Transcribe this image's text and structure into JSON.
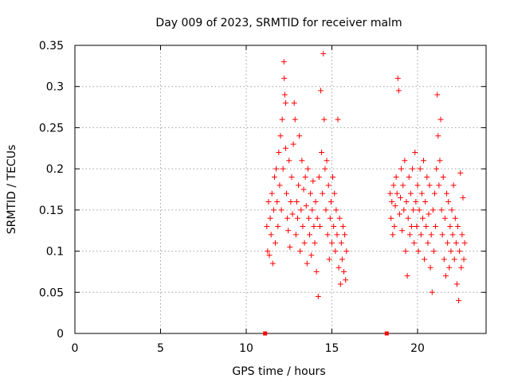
{
  "chart_data": {
    "type": "scatter",
    "title": "Day 009 of 2023, SRMTID for receiver malm",
    "xlabel": "GPS time / hours",
    "ylabel": "SRMTID / TECUs",
    "xlim": [
      0,
      24
    ],
    "ylim": [
      0,
      0.35
    ],
    "x_ticks": [
      0,
      5,
      10,
      15,
      20
    ],
    "x_tick_labels": [
      "0",
      "5",
      "10",
      "15",
      "20"
    ],
    "y_ticks": [
      0,
      0.05,
      0.1,
      0.15,
      0.2,
      0.25,
      0.3,
      0.35
    ],
    "y_tick_labels": [
      "0",
      "0.05",
      "0.1",
      "0.15",
      "0.2",
      "0.25",
      "0.3",
      "0.35"
    ],
    "grid": true,
    "marker": "plus",
    "color": "#ff0000",
    "gap_markers": [
      {
        "x": 11.1,
        "y": 0
      },
      {
        "x": 18.2,
        "y": 0
      }
    ],
    "series": [
      {
        "values": [
          [
            11.2,
            0.13
          ],
          [
            11.25,
            0.1
          ],
          [
            11.3,
            0.16
          ],
          [
            11.35,
            0.095
          ],
          [
            11.4,
            0.14
          ],
          [
            11.45,
            0.12
          ],
          [
            11.5,
            0.17
          ],
          [
            11.55,
            0.085
          ],
          [
            11.6,
            0.15
          ],
          [
            11.65,
            0.19
          ],
          [
            11.7,
            0.11
          ],
          [
            11.75,
            0.2
          ],
          [
            11.8,
            0.16
          ],
          [
            11.85,
            0.13
          ],
          [
            11.9,
            0.22
          ],
          [
            11.95,
            0.18
          ],
          [
            12.0,
            0.24
          ],
          [
            12.05,
            0.15
          ],
          [
            12.1,
            0.26
          ],
          [
            12.15,
            0.2
          ],
          [
            12.2,
            0.33
          ],
          [
            12.22,
            0.31
          ],
          [
            12.25,
            0.29
          ],
          [
            12.3,
            0.28
          ],
          [
            12.3,
            0.225
          ],
          [
            12.35,
            0.17
          ],
          [
            12.4,
            0.14
          ],
          [
            12.45,
            0.125
          ],
          [
            12.5,
            0.21
          ],
          [
            12.55,
            0.105
          ],
          [
            12.6,
            0.16
          ],
          [
            12.65,
            0.19
          ],
          [
            12.7,
            0.145
          ],
          [
            12.75,
            0.23
          ],
          [
            12.8,
            0.28
          ],
          [
            12.85,
            0.26
          ],
          [
            12.9,
            0.12
          ],
          [
            12.95,
            0.16
          ],
          [
            13.0,
            0.14
          ],
          [
            13.05,
            0.18
          ],
          [
            13.1,
            0.24
          ],
          [
            13.15,
            0.1
          ],
          [
            13.2,
            0.15
          ],
          [
            13.25,
            0.21
          ],
          [
            13.3,
            0.13
          ],
          [
            13.35,
            0.175
          ],
          [
            13.4,
            0.11
          ],
          [
            13.45,
            0.19
          ],
          [
            13.5,
            0.155
          ],
          [
            13.55,
            0.085
          ],
          [
            13.6,
            0.2
          ],
          [
            13.65,
            0.14
          ],
          [
            13.7,
            0.12
          ],
          [
            13.75,
            0.17
          ],
          [
            13.8,
            0.095
          ],
          [
            13.85,
            0.15
          ],
          [
            13.9,
            0.185
          ],
          [
            13.95,
            0.13
          ],
          [
            14.0,
            0.11
          ],
          [
            14.05,
            0.16
          ],
          [
            14.1,
            0.075
          ],
          [
            14.15,
            0.14
          ],
          [
            14.2,
            0.045
          ],
          [
            14.25,
            0.19
          ],
          [
            14.3,
            0.13
          ],
          [
            14.35,
            0.295
          ],
          [
            14.4,
            0.22
          ],
          [
            14.45,
            0.17
          ],
          [
            14.5,
            0.34
          ],
          [
            14.55,
            0.26
          ],
          [
            14.6,
            0.2
          ],
          [
            14.65,
            0.15
          ],
          [
            14.7,
            0.21
          ],
          [
            14.75,
            0.12
          ],
          [
            14.8,
            0.18
          ],
          [
            14.85,
            0.09
          ],
          [
            14.9,
            0.14
          ],
          [
            14.95,
            0.16
          ],
          [
            15.0,
            0.11
          ],
          [
            15.05,
            0.19
          ],
          [
            15.1,
            0.13
          ],
          [
            15.15,
            0.17
          ],
          [
            15.2,
            0.1
          ],
          [
            15.25,
            0.15
          ],
          [
            15.3,
            0.12
          ],
          [
            15.35,
            0.26
          ],
          [
            15.4,
            0.08
          ],
          [
            15.45,
            0.14
          ],
          [
            15.5,
            0.06
          ],
          [
            15.55,
            0.11
          ],
          [
            15.6,
            0.09
          ],
          [
            15.65,
            0.13
          ],
          [
            15.7,
            0.075
          ],
          [
            15.75,
            0.12
          ],
          [
            15.8,
            0.065
          ],
          [
            15.85,
            0.1
          ],
          [
            18.4,
            0.17
          ],
          [
            18.45,
            0.14
          ],
          [
            18.5,
            0.16
          ],
          [
            18.55,
            0.12
          ],
          [
            18.6,
            0.18
          ],
          [
            18.65,
            0.13
          ],
          [
            18.7,
            0.155
          ],
          [
            18.75,
            0.19
          ],
          [
            18.8,
            0.17
          ],
          [
            18.85,
            0.31
          ],
          [
            18.9,
            0.295
          ],
          [
            18.95,
            0.145
          ],
          [
            19.0,
            0.165
          ],
          [
            19.05,
            0.2
          ],
          [
            19.1,
            0.125
          ],
          [
            19.15,
            0.18
          ],
          [
            19.2,
            0.15
          ],
          [
            19.25,
            0.21
          ],
          [
            19.3,
            0.1
          ],
          [
            19.35,
            0.16
          ],
          [
            19.4,
            0.07
          ],
          [
            19.45,
            0.14
          ],
          [
            19.5,
            0.19
          ],
          [
            19.55,
            0.12
          ],
          [
            19.6,
            0.17
          ],
          [
            19.65,
            0.13
          ],
          [
            19.7,
            0.2
          ],
          [
            19.75,
            0.15
          ],
          [
            19.8,
            0.11
          ],
          [
            19.85,
            0.22
          ],
          [
            19.9,
            0.16
          ],
          [
            19.95,
            0.13
          ],
          [
            20.0,
            0.18
          ],
          [
            20.05,
            0.1
          ],
          [
            20.1,
            0.15
          ],
          [
            20.15,
            0.2
          ],
          [
            20.2,
            0.12
          ],
          [
            20.25,
            0.17
          ],
          [
            20.3,
            0.14
          ],
          [
            20.35,
            0.21
          ],
          [
            20.4,
            0.09
          ],
          [
            20.45,
            0.16
          ],
          [
            20.5,
            0.13
          ],
          [
            20.55,
            0.19
          ],
          [
            20.6,
            0.11
          ],
          [
            20.65,
            0.145
          ],
          [
            20.7,
            0.18
          ],
          [
            20.75,
            0.08
          ],
          [
            20.8,
            0.12
          ],
          [
            20.85,
            0.05
          ],
          [
            20.9,
            0.15
          ],
          [
            20.95,
            0.1
          ],
          [
            21.0,
            0.17
          ],
          [
            21.05,
            0.13
          ],
          [
            21.1,
            0.2
          ],
          [
            21.15,
            0.29
          ],
          [
            21.2,
            0.24
          ],
          [
            21.25,
            0.18
          ],
          [
            21.3,
            0.21
          ],
          [
            21.35,
            0.26
          ],
          [
            21.4,
            0.15
          ],
          [
            21.45,
            0.12
          ],
          [
            21.5,
            0.19
          ],
          [
            21.55,
            0.09
          ],
          [
            21.6,
            0.14
          ],
          [
            21.65,
            0.07
          ],
          [
            21.7,
            0.17
          ],
          [
            21.75,
            0.11
          ],
          [
            21.8,
            0.16
          ],
          [
            21.85,
            0.08
          ],
          [
            21.9,
            0.13
          ],
          [
            21.95,
            0.1
          ],
          [
            22.0,
            0.15
          ],
          [
            22.05,
            0.12
          ],
          [
            22.1,
            0.18
          ],
          [
            22.15,
            0.09
          ],
          [
            22.2,
            0.14
          ],
          [
            22.25,
            0.11
          ],
          [
            22.3,
            0.06
          ],
          [
            22.35,
            0.13
          ],
          [
            22.4,
            0.04
          ],
          [
            22.45,
            0.1
          ],
          [
            22.5,
            0.195
          ],
          [
            22.55,
            0.08
          ],
          [
            22.6,
            0.12
          ],
          [
            22.65,
            0.165
          ],
          [
            22.7,
            0.09
          ],
          [
            22.75,
            0.11
          ]
        ]
      }
    ]
  }
}
